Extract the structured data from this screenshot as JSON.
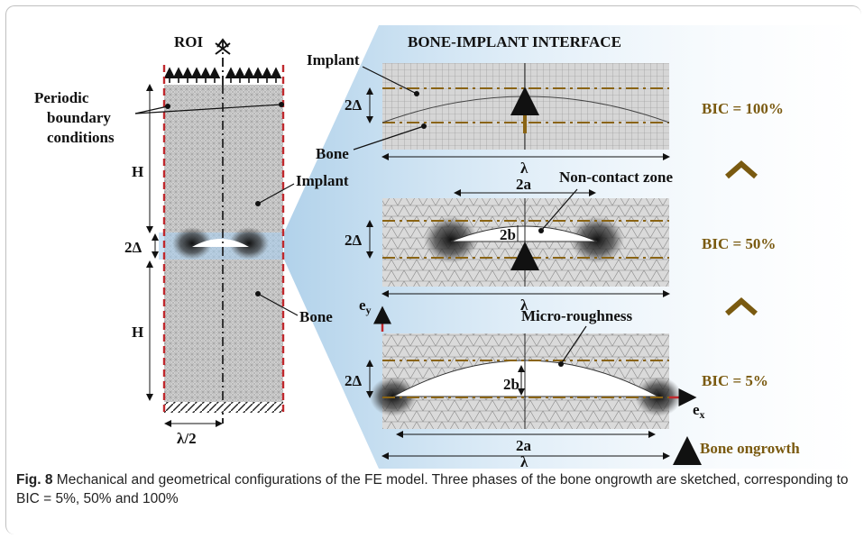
{
  "roi": {
    "title": "ROI",
    "periodic_label": [
      "Periodic",
      "boundary",
      "conditions"
    ],
    "h_label": "H",
    "delta_label": "2Δ",
    "implant_label": "Implant",
    "bone_label": "Bone",
    "half_lambda_label": "λ/2"
  },
  "interface": {
    "title": "BONE-IMPLANT INTERFACE",
    "panel1": {
      "implant": "Implant",
      "bone": "Bone",
      "delta": "2Δ",
      "lambda": "λ",
      "bic": "BIC = 100%"
    },
    "panel2": {
      "width_label": "2a",
      "noncontact": "Non-contact zone",
      "delta": "2Δ",
      "height_label": "2b",
      "lambda": "λ",
      "bic": "BIC = 50%"
    },
    "panel3": {
      "ey": "e",
      "ey_sub": "y",
      "roughness": "Micro-roughness",
      "delta": "2Δ",
      "height_label": "2b",
      "ex": "e",
      "ex_sub": "x",
      "width_label": "2a",
      "lambda": "λ",
      "bic": "BIC = 5%"
    },
    "legend_ongrowth": "Bone ongrowth"
  },
  "caption": {
    "fig_label": "Fig. 8",
    "text": "Mechanical and geometrical configurations of the FE model. Three phases of the bone ongrowth are sketched, corresponding to BIC = 5%, 50% and 100%"
  },
  "colors": {
    "bic_text": "#7a5a10",
    "dashed_boundary": "#c0282d",
    "arrow_ongrowth": "#8a6414",
    "mesh_fill": "#cdcdcd",
    "interface_glow": "#cfe3f5"
  }
}
